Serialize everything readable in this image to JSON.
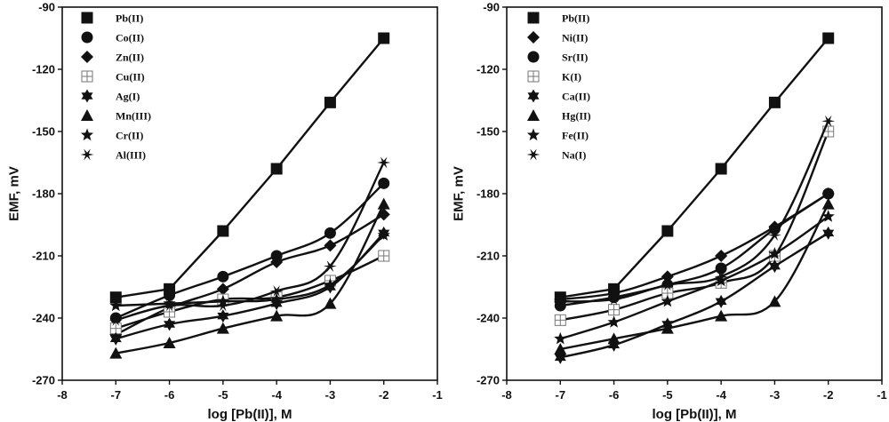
{
  "chart_data": [
    {
      "type": "line",
      "xlabel": "log [Pb(II)], M",
      "ylabel": "EMF, mV",
      "xlim": [
        -8,
        -1
      ],
      "ylim": [
        -270,
        -90
      ],
      "xticks": [
        -8,
        -7,
        -6,
        -5,
        -4,
        -3,
        -2,
        -1
      ],
      "yticks": [
        -270,
        -240,
        -210,
        -180,
        -150,
        -120,
        -90
      ],
      "grid": false,
      "legend_position": "top-left",
      "x": [
        -7,
        -6,
        -5,
        -4,
        -3,
        -2
      ],
      "series": [
        {
          "name": "Pb(II)",
          "marker": "square",
          "values": [
            -230,
            -226,
            -198,
            -168,
            -136,
            -105
          ]
        },
        {
          "name": "Co(II)",
          "marker": "circle",
          "values": [
            -240,
            -229,
            -220,
            -210,
            -199,
            -175
          ]
        },
        {
          "name": "Zn(II)",
          "marker": "diamond",
          "values": [
            -248,
            -235,
            -226,
            -213,
            -205,
            -190
          ]
        },
        {
          "name": "Cu(II)",
          "marker": "open-square-cross",
          "values": [
            -245,
            -237,
            -231,
            -230,
            -222,
            -210
          ]
        },
        {
          "name": "Ag(I)",
          "marker": "hexagram",
          "values": [
            -250,
            -243,
            -239,
            -233,
            -225,
            -199
          ]
        },
        {
          "name": "Mn(III)",
          "marker": "triangle",
          "values": [
            -257,
            -252,
            -245,
            -239,
            -233,
            -185
          ]
        },
        {
          "name": "Cr(II)",
          "marker": "star",
          "values": [
            -234,
            -233,
            -232,
            -231,
            -224,
            -200
          ]
        },
        {
          "name": "Al(III)",
          "marker": "asterisk",
          "values": [
            -241,
            -234,
            -234,
            -227,
            -215,
            -165
          ]
        }
      ]
    },
    {
      "type": "line",
      "xlabel": "log [Pb(II)], M",
      "ylabel": "EMF, mV",
      "xlim": [
        -8,
        -1
      ],
      "ylim": [
        -270,
        -90
      ],
      "xticks": [
        -8,
        -7,
        -6,
        -5,
        -4,
        -3,
        -2,
        -1
      ],
      "yticks": [
        -270,
        -240,
        -210,
        -180,
        -150,
        -120,
        -90
      ],
      "grid": false,
      "legend_position": "top-left",
      "x": [
        -7,
        -6,
        -5,
        -4,
        -3,
        -2
      ],
      "series": [
        {
          "name": "Pb(II)",
          "marker": "square",
          "values": [
            -230,
            -226,
            -198,
            -168,
            -136,
            -105
          ]
        },
        {
          "name": "Ni(II)",
          "marker": "diamond",
          "values": [
            -231,
            -228,
            -220,
            -210,
            -196,
            -180
          ]
        },
        {
          "name": "Sr(II)",
          "marker": "circle",
          "values": [
            -234,
            -230,
            -224,
            -216,
            -197,
            -180
          ]
        },
        {
          "name": "K(I)",
          "marker": "open-square-cross",
          "values": [
            -241,
            -236,
            -228,
            -223,
            -210,
            -150
          ]
        },
        {
          "name": "Ca(II)",
          "marker": "hexagram",
          "values": [
            -259,
            -253,
            -243,
            -232,
            -215,
            -199
          ]
        },
        {
          "name": "Hg(II)",
          "marker": "triangle",
          "values": [
            -255,
            -250,
            -245,
            -239,
            -232,
            -185
          ]
        },
        {
          "name": "Fe(II)",
          "marker": "star",
          "values": [
            -250,
            -242,
            -232,
            -222,
            -209,
            -191
          ]
        },
        {
          "name": "Na(I)",
          "marker": "asterisk",
          "values": [
            -232,
            -231,
            -224,
            -220,
            -200,
            -145
          ]
        }
      ]
    }
  ]
}
